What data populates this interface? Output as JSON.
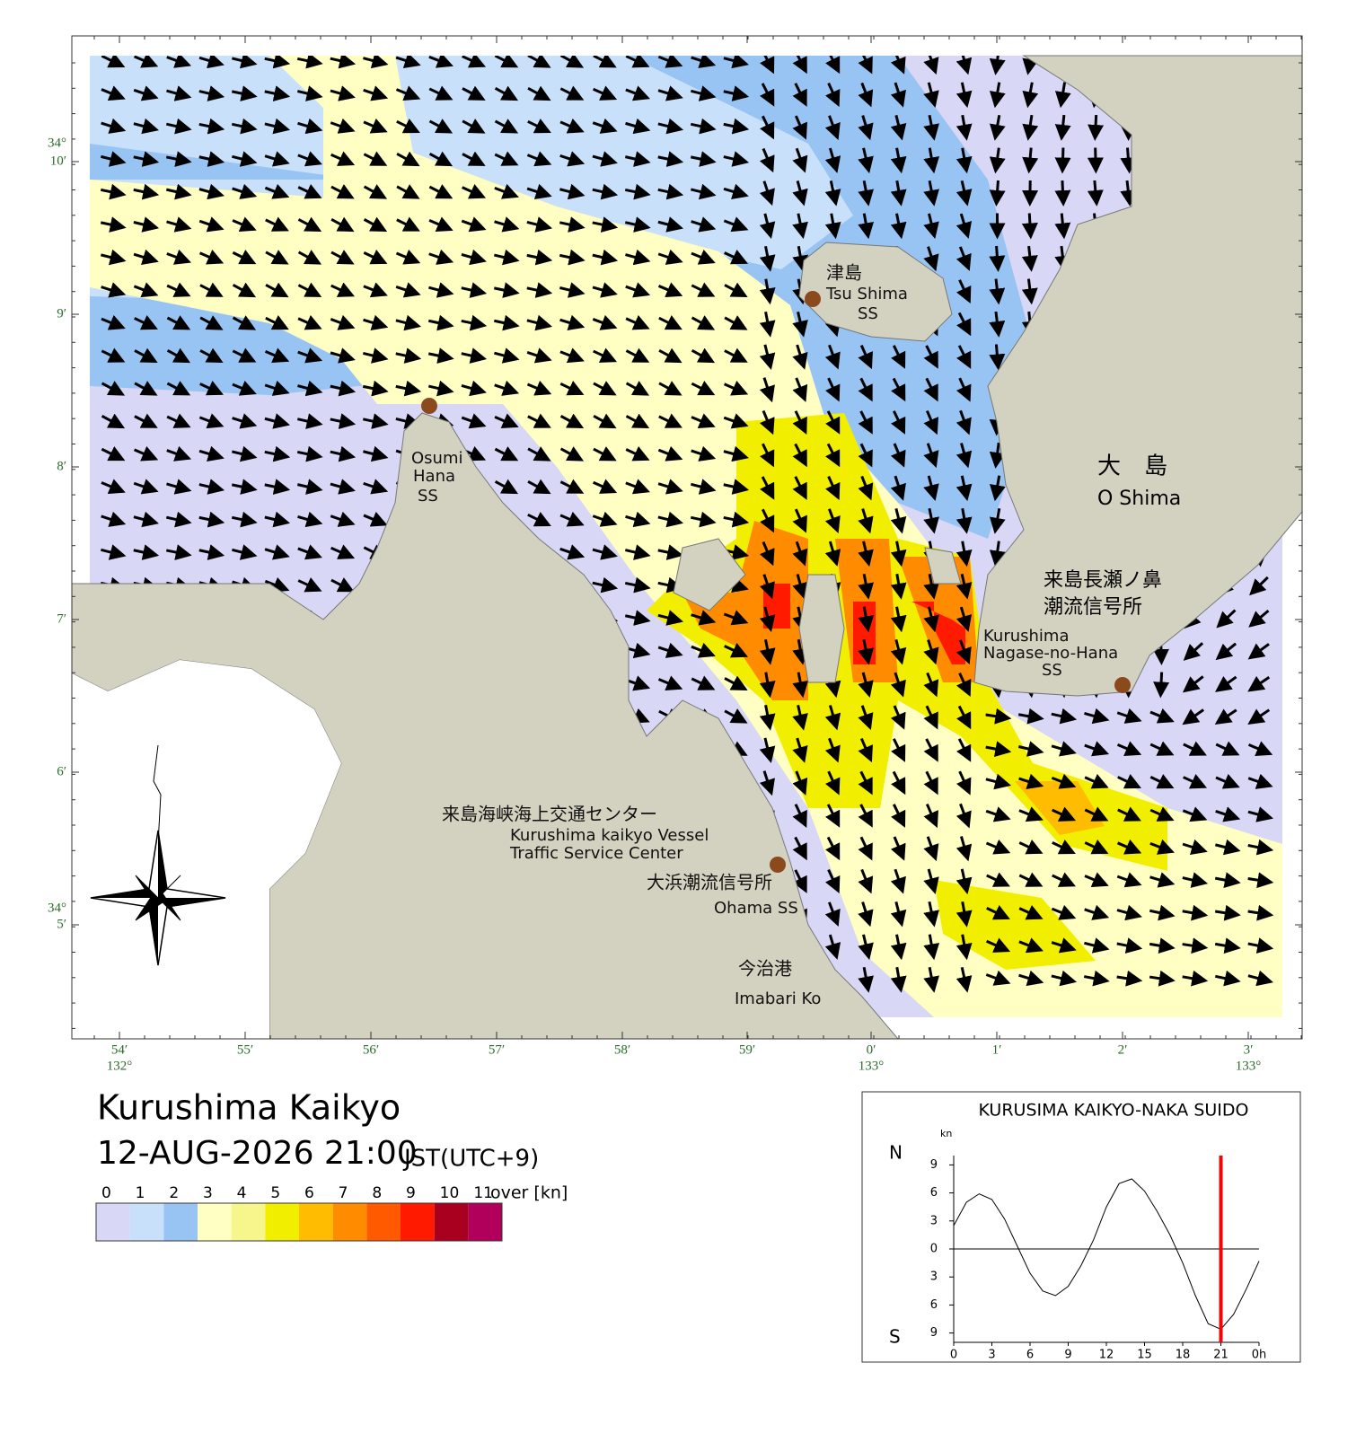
{
  "map": {
    "place_labels": [
      {
        "name": "津島",
        "sub": "Tsu Shima",
        "sub2": "SS"
      },
      {
        "name": "Osumi",
        "sub": "Hana",
        "sub2": "SS"
      },
      {
        "name": "大　島",
        "sub": "O Shima"
      },
      {
        "name": "来島長瀬ノ鼻",
        "sub": "潮流信号所"
      },
      {
        "name": "Kurushima",
        "sub": "Nagase-no-Hana",
        "sub2": "SS"
      },
      {
        "name": "来島海峡海上交通センター",
        "sub": "Kurushima kaikyo Vessel",
        "sub2": "Traffic Service Center"
      },
      {
        "name": "大浜潮流信号所",
        "sub": "Ohama SS"
      },
      {
        "name": "今治港",
        "sub": "Imabari Ko"
      }
    ],
    "lon_ticks": [
      "54′",
      "55′",
      "56′",
      "57′",
      "58′",
      "59′",
      "0′",
      "1′",
      "2′",
      "3′"
    ],
    "lon_degrees": [
      "132°",
      "133°",
      "133°"
    ],
    "lat_ticks": [
      "10′",
      "9′",
      "8′",
      "7′",
      "6′",
      "5′"
    ],
    "lat_degrees": [
      "34°",
      "34°"
    ]
  },
  "header": {
    "title": "Kurushima Kaikyo",
    "datetime": "12-AUG-2026 21:00",
    "timezone": "JST(UTC+9)"
  },
  "legend": {
    "levels": [
      0,
      1,
      2,
      3,
      4,
      5,
      6,
      7,
      8,
      9,
      10,
      11
    ],
    "unit": "over [kn]",
    "colors": [
      "#d8d8f6",
      "#c8e0fa",
      "#98c4f4",
      "#ffffc4",
      "#f6f68c",
      "#f2ee00",
      "#ffbc00",
      "#ff8c00",
      "#ff5a00",
      "#ff1a00",
      "#a8001e",
      "#b0005c"
    ]
  },
  "chart_data": {
    "type": "line",
    "title": "KURUSIMA KAIKYO-NAKA SUIDO",
    "y_unit": "kn",
    "north_label": "N",
    "south_label": "S",
    "x": [
      0,
      1,
      2,
      3,
      4,
      5,
      6,
      7,
      8,
      9,
      10,
      11,
      12,
      13,
      14,
      15,
      16,
      17,
      18,
      19,
      20,
      21,
      22,
      23,
      24
    ],
    "series": [
      {
        "color": "#000000",
        "values": [
          2.5,
          5,
          5.9,
          5.3,
          3.2,
          0.3,
          -2.6,
          -4.5,
          -5,
          -4,
          -1.8,
          1,
          4.5,
          7,
          7.5,
          6.2,
          4,
          1.5,
          -1.5,
          -5,
          -8,
          -8.6,
          -7,
          -4.3,
          -1.3
        ]
      }
    ],
    "current_time": 21,
    "current_color": "#ff0000",
    "xlim": [
      0,
      24
    ],
    "xticks": [
      0,
      3,
      6,
      9,
      12,
      15,
      18,
      21,
      {
        "value": 24,
        "label": "0h"
      }
    ],
    "ylim": [
      -10,
      10
    ],
    "yticks": [
      {
        "value": -9,
        "label": "9"
      },
      {
        "value": -6,
        "label": "6"
      },
      {
        "value": -3,
        "label": "3"
      },
      0,
      3,
      6,
      9
    ]
  }
}
